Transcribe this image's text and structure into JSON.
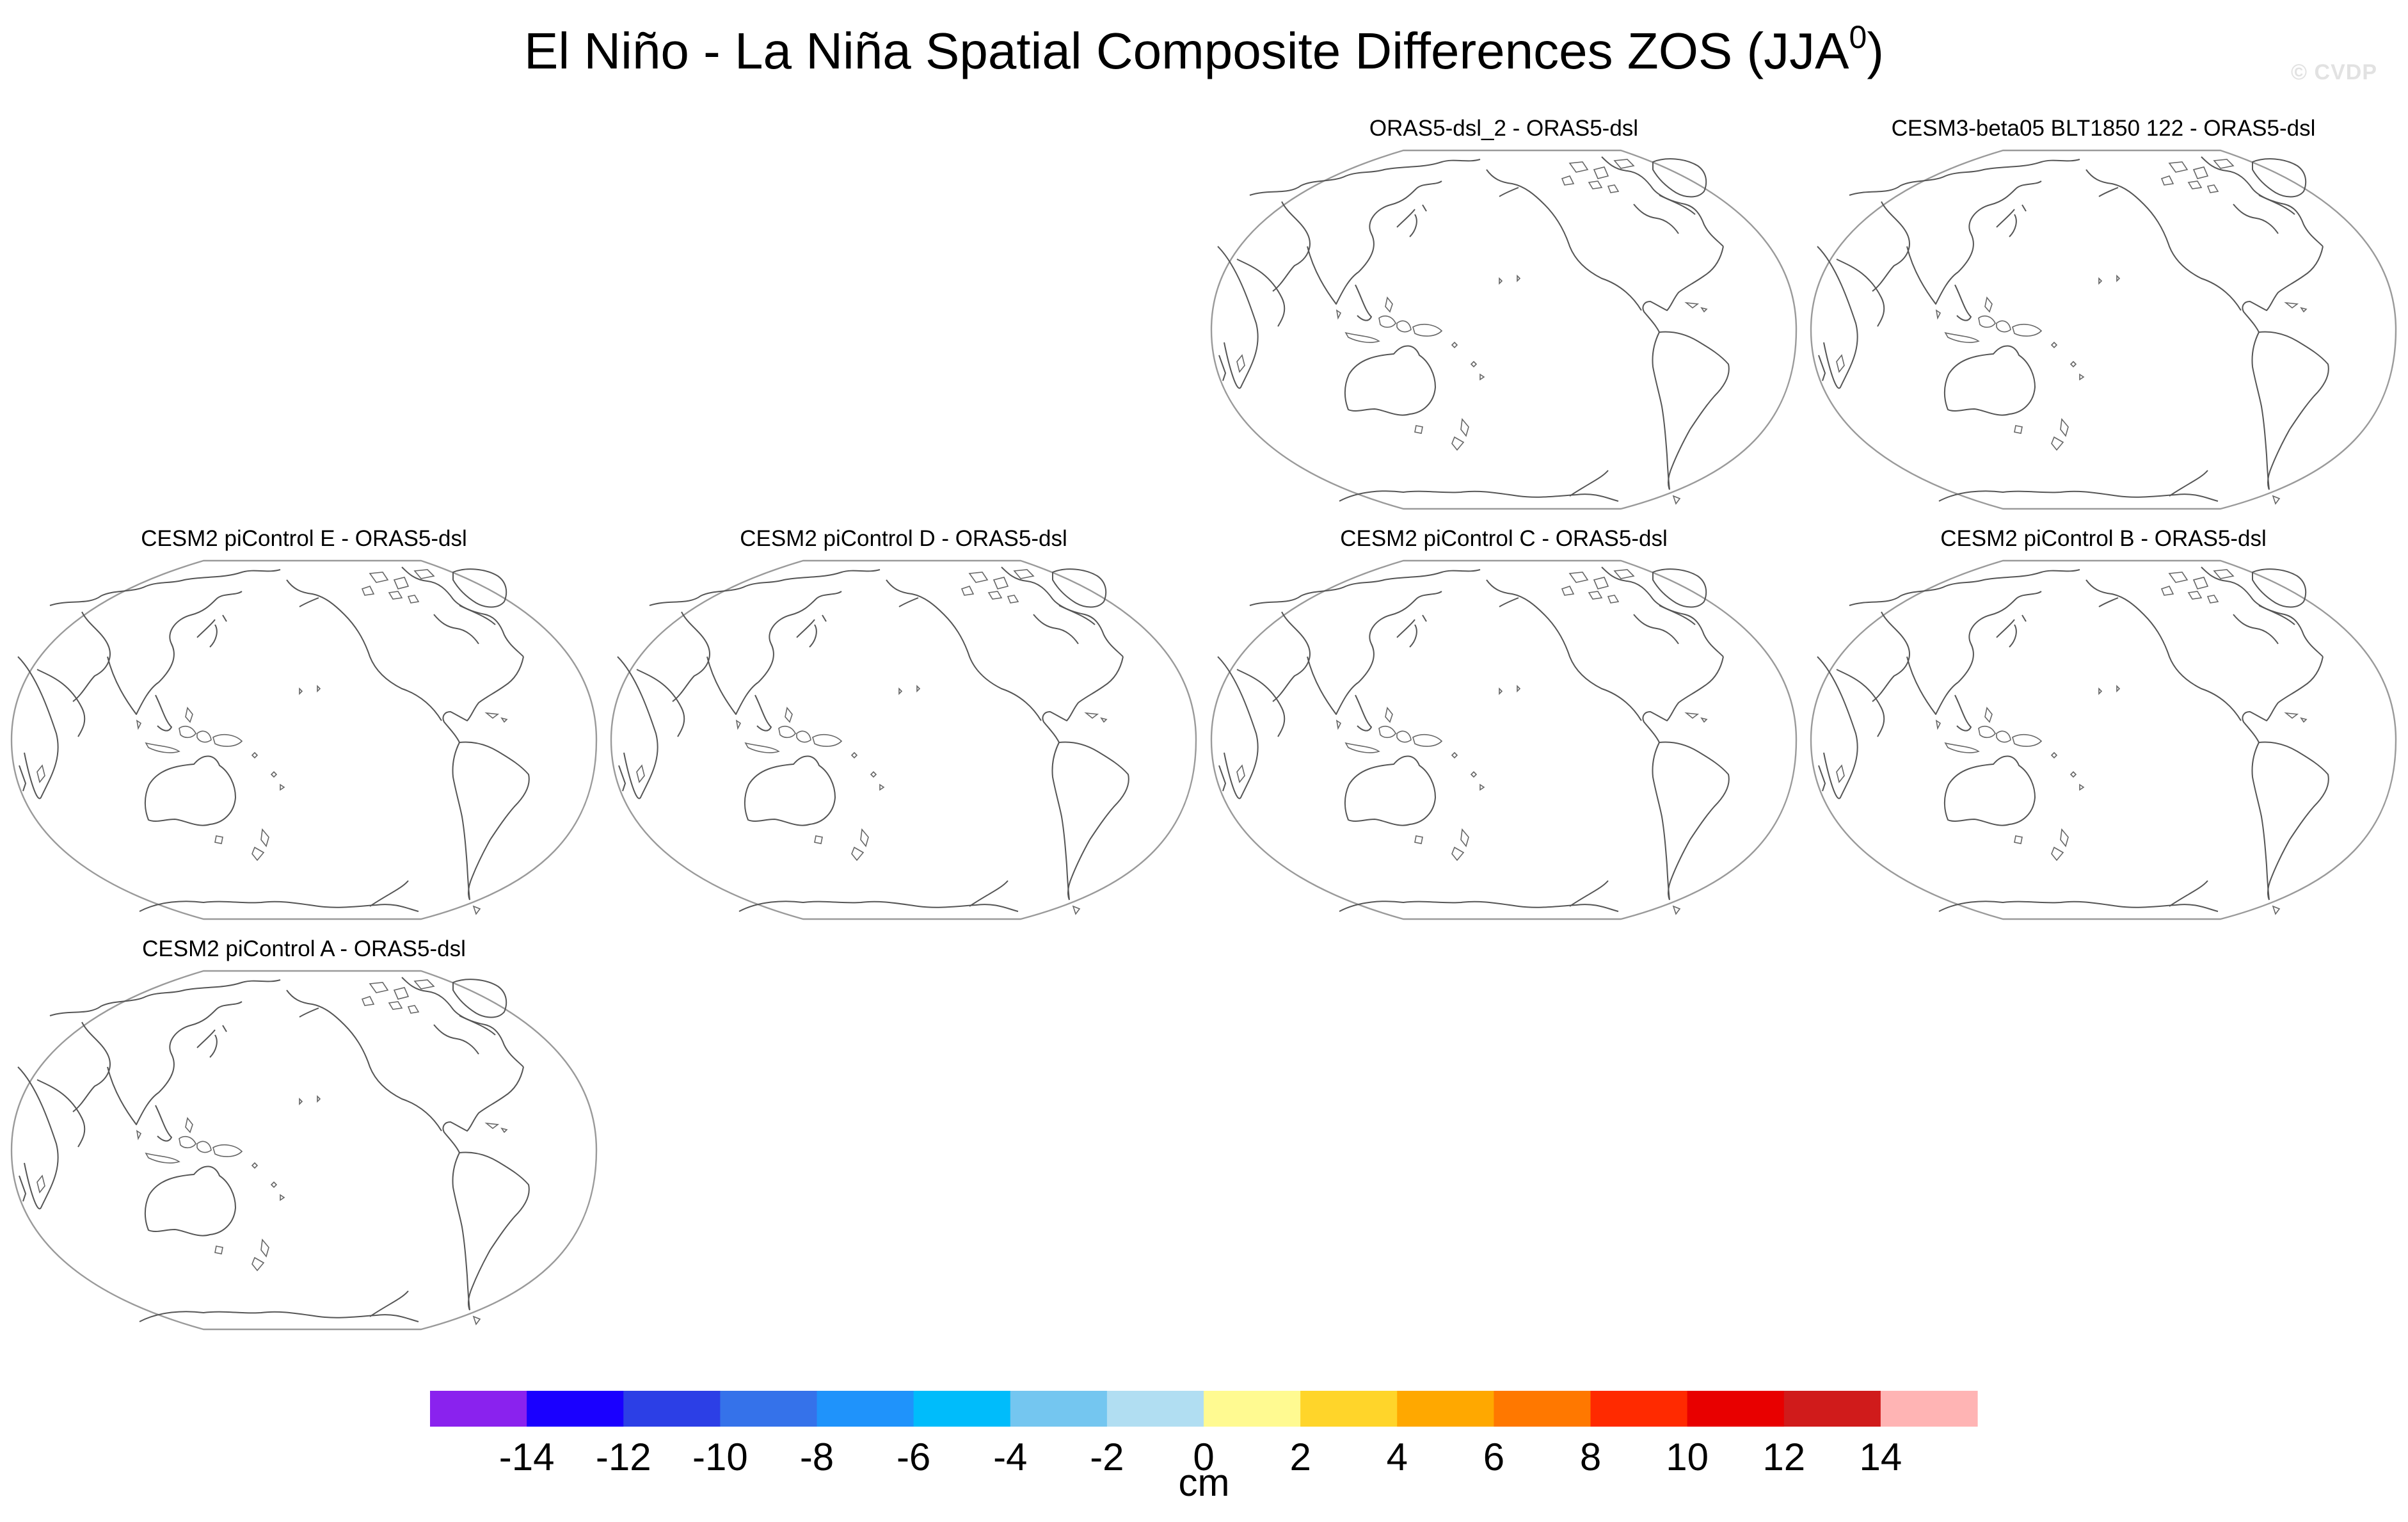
{
  "title": {
    "main": "El Niño - La Niña Spatial Composite Differences ZOS (JJA",
    "superscript": "0",
    "suffix": ")"
  },
  "watermark": "© CVDP",
  "panels": [
    {
      "id": "orasdsl2",
      "title": "ORAS5-dsl_2 - ORAS5-dsl",
      "row": 0,
      "col": 2
    },
    {
      "id": "cesm3",
      "title": "CESM3-beta05 BLT1850 122 - ORAS5-dsl",
      "row": 0,
      "col": 3
    },
    {
      "id": "pice",
      "title": "CESM2 piControl E - ORAS5-dsl",
      "row": 1,
      "col": 0
    },
    {
      "id": "picd",
      "title": "CESM2 piControl D - ORAS5-dsl",
      "row": 1,
      "col": 1
    },
    {
      "id": "picc",
      "title": "CESM2 piControl C - ORAS5-dsl",
      "row": 1,
      "col": 2
    },
    {
      "id": "picb",
      "title": "CESM2 piControl B - ORAS5-dsl",
      "row": 1,
      "col": 3
    },
    {
      "id": "pica",
      "title": "CESM2 piControl A - ORAS5-dsl",
      "row": 2,
      "col": 0
    }
  ],
  "colorbar": {
    "units": "cm",
    "tick_labels": [
      "-14",
      "-12",
      "-10",
      "-8",
      "-6",
      "-4",
      "-2",
      "0",
      "2",
      "4",
      "6",
      "8",
      "10",
      "12",
      "14"
    ],
    "colors": [
      "#8a22ee",
      "#1a00ff",
      "#2c3fe6",
      "#3572ea",
      "#1f93fb",
      "#00bcfb",
      "#74c6f0",
      "#b1def2",
      "#fffa91",
      "#ffd52a",
      "#ffa800",
      "#ff7800",
      "#ff2a00",
      "#e80000",
      "#d01b1b",
      "#ffb4b4"
    ]
  }
}
